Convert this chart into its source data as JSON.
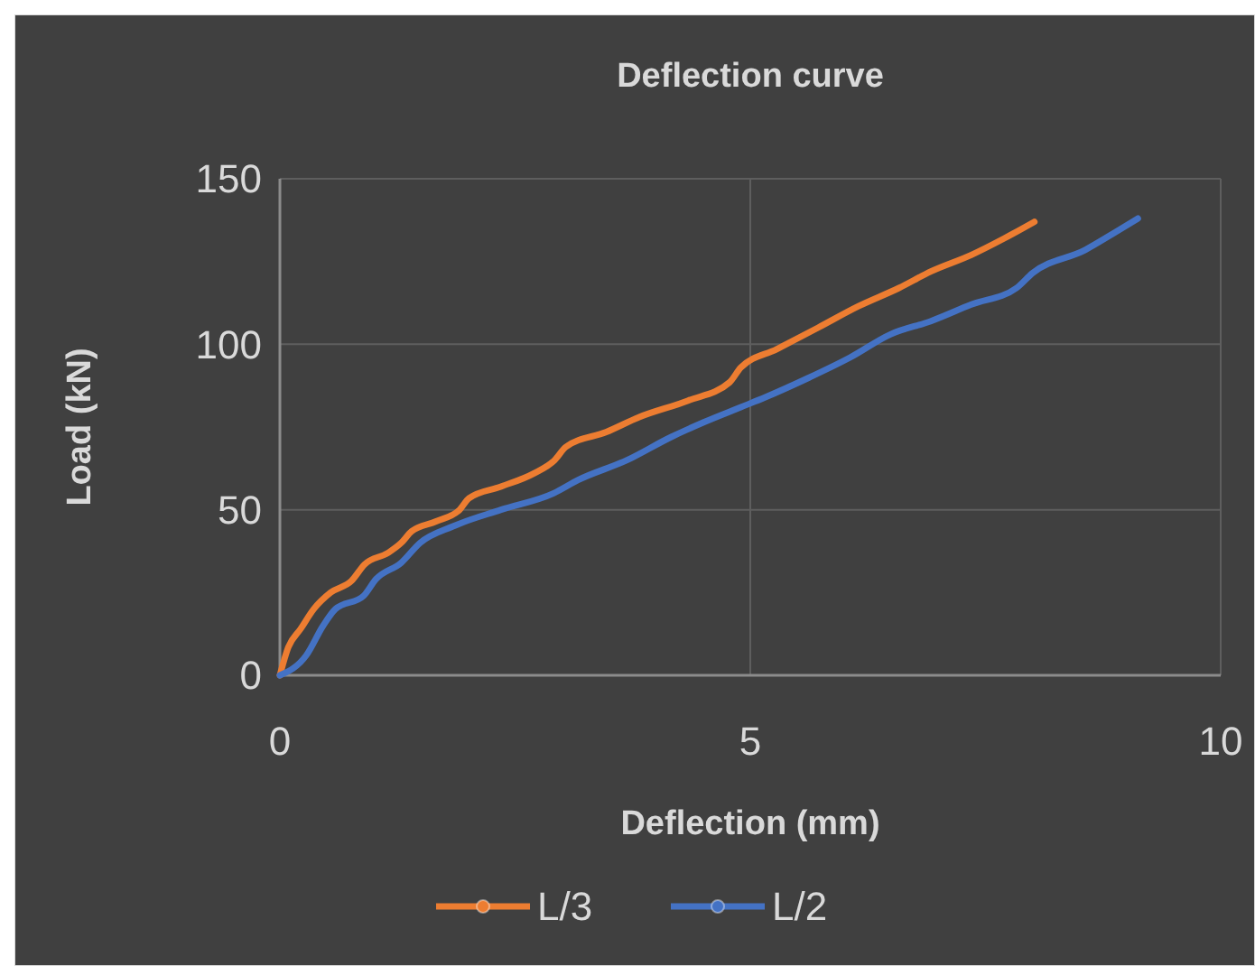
{
  "chart_data": {
    "type": "line",
    "title": "Deflection curve",
    "xlabel": "Deflection (mm)",
    "ylabel": "Load (kN)",
    "xlim": [
      0,
      10
    ],
    "xticks": [
      0,
      5,
      10
    ],
    "ylim": [
      0,
      150
    ],
    "yticks": [
      0,
      50,
      100,
      150
    ],
    "grid": true,
    "legend": "bottom",
    "marker": "none",
    "line_style": "solid",
    "series": [
      {
        "name": "L/3",
        "color": "#ed7d31",
        "x": [
          0,
          0.09,
          0.22,
          0.36,
          0.54,
          0.76,
          0.9,
          1.15,
          1.29,
          1.4,
          1.66,
          1.91,
          2.01,
          2.35,
          2.7,
          2.92,
          3.04,
          3.47,
          3.82,
          4.34,
          4.78,
          4.9,
          5.28,
          5.72,
          6.15,
          6.58,
          6.92,
          7.35,
          7.7,
          8.02
        ],
        "values": [
          0,
          8.5,
          14,
          20,
          25,
          28.5,
          33.5,
          37,
          40,
          43.5,
          46.5,
          50,
          53.5,
          57,
          61,
          65,
          69,
          73.5,
          78,
          83,
          88.5,
          93,
          98.5,
          105,
          111.5,
          117,
          122,
          127,
          132,
          137
        ]
      },
      {
        "name": "L/2",
        "color": "#4472c4",
        "x": [
          0,
          0.28,
          0.46,
          0.59,
          0.89,
          1.02,
          1.29,
          1.49,
          1.84,
          2.35,
          2.91,
          3.17,
          3.69,
          4.16,
          4.51,
          4.9,
          5.16,
          5.63,
          6.06,
          6.49,
          6.92,
          7.35,
          7.83,
          8.0,
          8.56,
          8.86,
          9.12
        ],
        "values": [
          0,
          6,
          15,
          20,
          24,
          29,
          34,
          40,
          45,
          50,
          55,
          59,
          65,
          72,
          76.5,
          81,
          84,
          90,
          96,
          103,
          107,
          112,
          117,
          121.5,
          128.5,
          133.5,
          138
        ]
      }
    ]
  }
}
